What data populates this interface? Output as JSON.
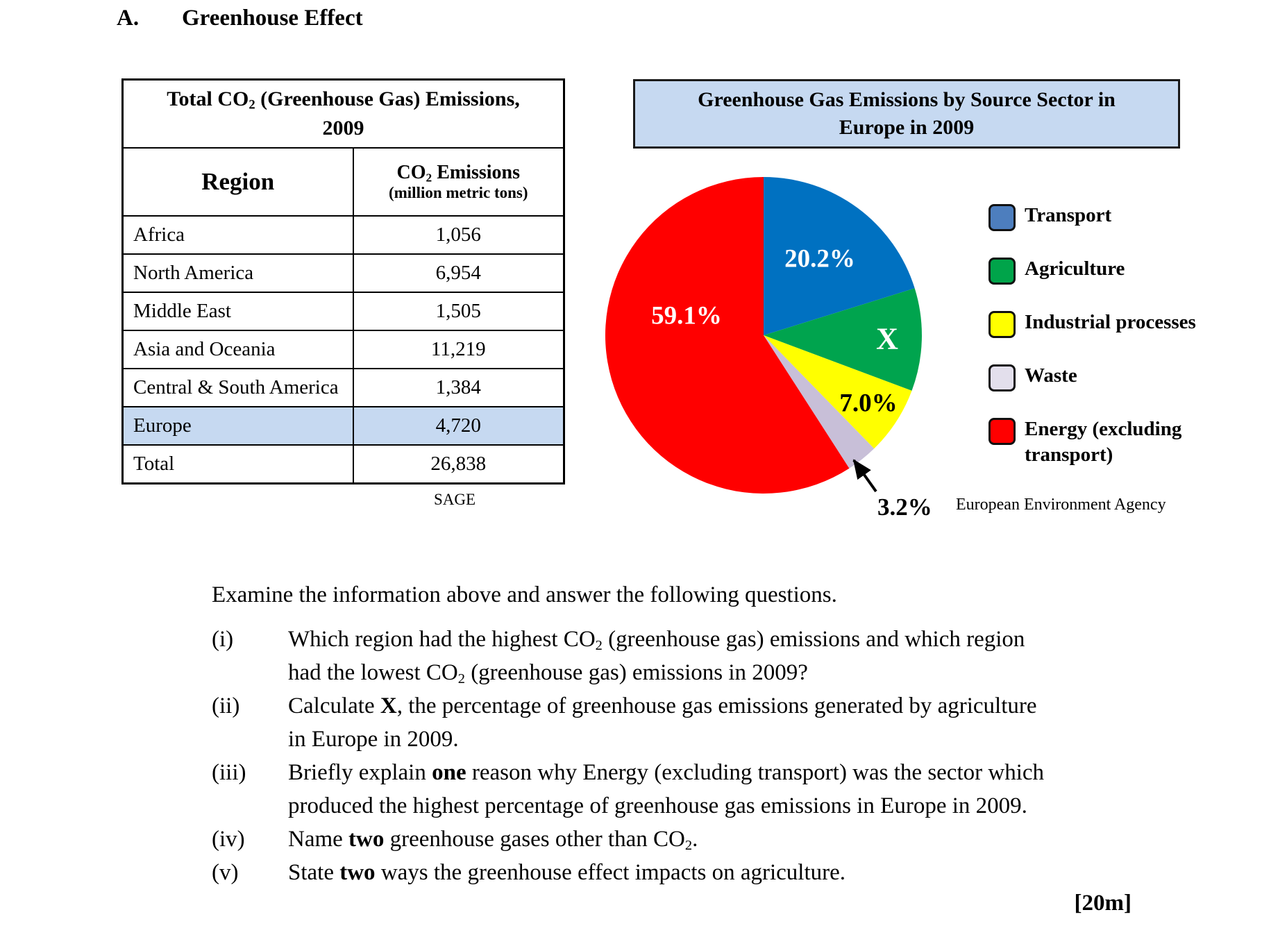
{
  "header": {
    "section_label": "A.",
    "title": "Greenhouse Effect"
  },
  "table": {
    "title_segments": [
      [
        "",
        "Total CO"
      ],
      [
        "sub",
        "2"
      ],
      [
        "",
        " (Greenhouse Gas) Emissions, 2009"
      ]
    ],
    "columns": {
      "region_label": "Region",
      "value_label_segments": [
        [
          "",
          "CO"
        ],
        [
          "sub",
          "2"
        ],
        [
          "",
          " Emissions"
        ]
      ],
      "value_sublabel": "(million metric tons)"
    },
    "rows": [
      {
        "region": "Africa",
        "value": "1,056",
        "highlight": false
      },
      {
        "region": "North America",
        "value": "6,954",
        "highlight": false
      },
      {
        "region": "Middle East",
        "value": "1,505",
        "highlight": false
      },
      {
        "region": "Asia and Oceania",
        "value": "11,219",
        "highlight": false
      },
      {
        "region": "Central & South America",
        "value": "1,384",
        "highlight": false
      },
      {
        "region": "Europe",
        "value": "4,720",
        "highlight": true
      },
      {
        "region": "Total",
        "value": "26,838",
        "highlight": false
      }
    ],
    "highlight_color": "#C6D9F1",
    "source": "SAGE"
  },
  "chart_data": {
    "type": "pie",
    "title": "Greenhouse Gas Emissions by Source Sector in Europe in 2009",
    "source": "European Environment Agency",
    "legend_position": "right",
    "direction": "clockwise",
    "start_angle_deg": 0,
    "slices": [
      {
        "label": "Transport",
        "value": 20.2,
        "display": "20.2%",
        "color": "#0071C1",
        "legend_color": "#4D7EBE"
      },
      {
        "label": "Agriculture",
        "value": 10.5,
        "display": "X",
        "color": "#00A44E",
        "legend_color": "#00A44A"
      },
      {
        "label": "Industrial processes",
        "value": 7.0,
        "display": "7.0%",
        "color": "#FFFF00",
        "legend_color": "#FFFF00"
      },
      {
        "label": "Waste",
        "value": 3.2,
        "display": "3.2%",
        "color": "#C8BFD8",
        "legend_color": "#E3DFEC"
      },
      {
        "label": "Energy (excluding transport)",
        "value": 59.1,
        "display": "59.1%",
        "color": "#FF0000",
        "legend_color": "#FF0000"
      }
    ]
  },
  "questions": {
    "intro": "Examine the information above and answer the following questions.",
    "items": [
      {
        "marker": "(i)",
        "lines": [
          [
            [
              "",
              "Which region had the highest CO"
            ],
            [
              "sub",
              "2"
            ],
            [
              "",
              " (greenhouse gas) emissions and which region"
            ]
          ],
          [
            [
              "",
              "had the lowest CO"
            ],
            [
              "sub",
              "2"
            ],
            [
              "",
              " (greenhouse gas) emissions in 2009?"
            ]
          ]
        ]
      },
      {
        "marker": "(ii)",
        "lines": [
          [
            [
              "",
              "Calculate "
            ],
            [
              "b",
              "X"
            ],
            [
              "",
              ", the percentage of greenhouse gas emissions generated by agriculture"
            ]
          ],
          [
            [
              "",
              "in Europe in 2009."
            ]
          ]
        ]
      },
      {
        "marker": "(iii)",
        "lines": [
          [
            [
              "",
              "Briefly explain "
            ],
            [
              "b",
              "one"
            ],
            [
              "",
              " reason why Energy (excluding transport) was the sector which"
            ]
          ],
          [
            [
              "",
              "produced the highest percentage of greenhouse gas emissions in Europe in 2009."
            ]
          ]
        ]
      },
      {
        "marker": "(iv)",
        "lines": [
          [
            [
              "",
              "Name "
            ],
            [
              "b",
              "two"
            ],
            [
              "",
              " greenhouse gases other than CO"
            ],
            [
              "sub",
              "2"
            ],
            [
              "",
              "."
            ]
          ]
        ]
      },
      {
        "marker": "(v)",
        "lines": [
          [
            [
              "",
              "State "
            ],
            [
              "b",
              "two"
            ],
            [
              "",
              " ways the greenhouse effect impacts on agriculture."
            ]
          ]
        ]
      }
    ],
    "marks": "[20m]"
  }
}
